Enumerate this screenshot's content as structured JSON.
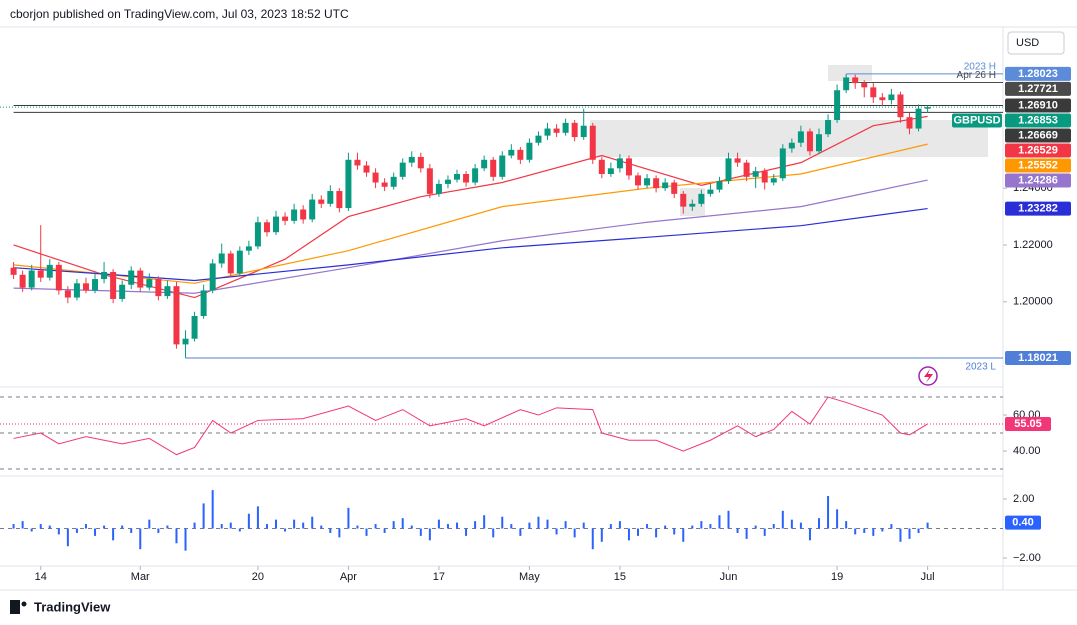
{
  "header": "cborjon published on TradingView.com, Jul 03, 2023 18:52 UTC",
  "brand": "TradingView",
  "currency": "USD",
  "chart_data": [
    {
      "type": "candlestick",
      "symbol": "GBPUSD",
      "up_color": "#089981",
      "down_color": "#f23645",
      "xlim": [
        -1.5,
        109
      ],
      "ylim": [
        1.1707,
        1.2957
      ],
      "xticks": [
        {
          "value": 3,
          "label": "14"
        },
        {
          "value": 14,
          "label": "Mar"
        },
        {
          "value": 27,
          "label": "20"
        },
        {
          "value": 37,
          "label": "Apr"
        },
        {
          "value": 47,
          "label": "17"
        },
        {
          "value": 57,
          "label": "May"
        },
        {
          "value": 67,
          "label": "15"
        },
        {
          "value": 79,
          "label": "Jun"
        },
        {
          "value": 91,
          "label": "19"
        },
        {
          "value": 101,
          "label": "Jul"
        }
      ],
      "yticks": [
        {
          "value": 1.2,
          "label": "1.20000"
        },
        {
          "value": 1.22,
          "label": "1.22000"
        },
        {
          "value": 1.24,
          "label": "1.24000"
        }
      ],
      "open": [
        1.212,
        1.2095,
        1.205,
        1.211,
        1.2085,
        1.213,
        1.204,
        1.2015,
        1.2065,
        1.204,
        1.208,
        1.2105,
        1.201,
        1.206,
        1.211,
        1.205,
        1.208,
        1.202,
        1.2055,
        1.185,
        1.187,
        1.195,
        1.204,
        1.2135,
        1.217,
        1.21,
        1.218,
        1.2195,
        1.228,
        1.2245,
        1.23,
        1.2285,
        1.2325,
        1.229,
        1.236,
        1.2345,
        1.239,
        1.233,
        1.25,
        1.248,
        1.2455,
        1.242,
        1.2405,
        1.244,
        1.249,
        1.251,
        1.247,
        1.238,
        1.2415,
        1.243,
        1.245,
        1.242,
        1.247,
        1.25,
        1.244,
        1.2515,
        1.2535,
        1.25,
        1.256,
        1.2585,
        1.261,
        1.2595,
        1.263,
        1.258,
        1.262,
        1.25,
        1.245,
        1.247,
        1.2505,
        1.2445,
        1.241,
        1.2435,
        1.24,
        1.242,
        1.238,
        1.2335,
        1.2345,
        1.238,
        1.2395,
        1.2425,
        1.2505,
        1.249,
        1.244,
        1.246,
        1.242,
        1.2435,
        1.254,
        1.256,
        1.26,
        1.253,
        1.259,
        1.264,
        1.2745,
        1.279,
        1.277,
        1.2755,
        1.272,
        1.271,
        1.273,
        1.265,
        1.261,
        1.268
      ],
      "high": [
        1.214,
        1.211,
        1.213,
        1.227,
        1.215,
        1.214,
        1.2055,
        1.208,
        1.2085,
        1.21,
        1.214,
        1.2115,
        1.2075,
        1.2125,
        1.212,
        1.21,
        1.209,
        1.2075,
        1.207,
        1.19,
        1.1965,
        1.206,
        1.215,
        1.2205,
        1.218,
        1.2195,
        1.2215,
        1.23,
        1.229,
        1.232,
        1.2315,
        1.2345,
        1.234,
        1.238,
        1.2375,
        1.241,
        1.24,
        1.2525,
        1.2525,
        1.2495,
        1.247,
        1.2435,
        1.2455,
        1.2505,
        1.253,
        1.2525,
        1.2485,
        1.243,
        1.2445,
        1.2465,
        1.246,
        1.2485,
        1.2515,
        1.251,
        1.253,
        1.2555,
        1.2545,
        1.2575,
        1.26,
        1.263,
        1.2625,
        1.2645,
        1.264,
        1.268,
        1.263,
        1.251,
        1.249,
        1.252,
        1.2515,
        1.2455,
        1.245,
        1.2445,
        1.2435,
        1.243,
        1.239,
        1.236,
        1.2395,
        1.2415,
        1.244,
        1.2525,
        1.2525,
        1.25,
        1.2475,
        1.247,
        1.245,
        1.2555,
        1.2575,
        1.262,
        1.261,
        1.261,
        1.266,
        1.2765,
        1.28023,
        1.28,
        1.278,
        1.277,
        1.2735,
        1.275,
        1.274,
        1.2665,
        1.2695,
        1.2691
      ],
      "low": [
        1.208,
        1.2035,
        1.204,
        1.207,
        1.2075,
        1.2025,
        1.1995,
        1.2005,
        1.203,
        1.203,
        1.2065,
        1.1995,
        1.2,
        1.2045,
        1.2035,
        1.204,
        1.2005,
        1.201,
        1.1835,
        1.18021,
        1.186,
        1.194,
        1.203,
        1.212,
        1.2085,
        1.209,
        1.2165,
        1.2185,
        1.223,
        1.2235,
        1.227,
        1.2275,
        1.2275,
        1.228,
        1.233,
        1.2335,
        1.2315,
        1.232,
        1.2465,
        1.244,
        1.24,
        1.239,
        1.2395,
        1.243,
        1.2475,
        1.2455,
        1.2365,
        1.237,
        1.24,
        1.242,
        1.2405,
        1.241,
        1.246,
        1.2425,
        1.243,
        1.2505,
        1.2485,
        1.249,
        1.255,
        1.257,
        1.258,
        1.2585,
        1.2565,
        1.257,
        1.2485,
        1.2435,
        1.244,
        1.2455,
        1.243,
        1.2395,
        1.24,
        1.2385,
        1.239,
        1.2365,
        1.231,
        1.232,
        1.2335,
        1.237,
        1.2385,
        1.2415,
        1.2475,
        1.2425,
        1.24,
        1.2395,
        1.241,
        1.2425,
        1.2525,
        1.2545,
        1.2515,
        1.252,
        1.258,
        1.263,
        1.2735,
        1.275,
        1.272,
        1.27,
        1.269,
        1.2695,
        1.263,
        1.259,
        1.26,
        1.26669
      ],
      "close": [
        1.2095,
        1.205,
        1.211,
        1.2085,
        1.213,
        1.204,
        1.2015,
        1.2065,
        1.204,
        1.208,
        1.2105,
        1.201,
        1.206,
        1.211,
        1.205,
        1.208,
        1.202,
        1.2055,
        1.185,
        1.187,
        1.195,
        1.204,
        1.2135,
        1.217,
        1.21,
        1.218,
        1.2195,
        1.228,
        1.2245,
        1.23,
        1.2285,
        1.2325,
        1.229,
        1.236,
        1.2345,
        1.239,
        1.233,
        1.25,
        1.248,
        1.2455,
        1.242,
        1.2405,
        1.244,
        1.249,
        1.251,
        1.247,
        1.238,
        1.2415,
        1.243,
        1.245,
        1.242,
        1.247,
        1.25,
        1.244,
        1.2515,
        1.2535,
        1.25,
        1.256,
        1.2585,
        1.261,
        1.2595,
        1.263,
        1.258,
        1.262,
        1.25,
        1.245,
        1.247,
        1.2505,
        1.2445,
        1.241,
        1.2435,
        1.24,
        1.242,
        1.238,
        1.2335,
        1.2345,
        1.238,
        1.2395,
        1.2425,
        1.2505,
        1.249,
        1.244,
        1.246,
        1.242,
        1.2435,
        1.254,
        1.256,
        1.26,
        1.253,
        1.259,
        1.264,
        1.2745,
        1.279,
        1.277,
        1.2755,
        1.272,
        1.271,
        1.273,
        1.265,
        1.261,
        1.268,
        1.26853
      ],
      "moving_averages": [
        {
          "color": "#f23645",
          "x": [
            0,
            10,
            20,
            30,
            37,
            45,
            54,
            65,
            76,
            87,
            95,
            101
          ],
          "values": [
            1.22,
            1.2095,
            1.2015,
            1.215,
            1.23,
            1.237,
            1.242,
            1.2515,
            1.241,
            1.249,
            1.262,
            1.26529
          ]
        },
        {
          "color": "#ff9800",
          "x": [
            0,
            20,
            37,
            54,
            70,
            87,
            101
          ],
          "values": [
            1.213,
            1.2065,
            1.218,
            1.2335,
            1.24,
            1.245,
            1.25552
          ]
        },
        {
          "color": "#9575cd",
          "x": [
            0,
            20,
            37,
            54,
            70,
            87,
            101
          ],
          "values": [
            1.2048,
            1.203,
            1.212,
            1.2215,
            1.228,
            1.2335,
            1.24286
          ]
        },
        {
          "color": "#2a2ed6",
          "x": [
            0,
            20,
            37,
            54,
            70,
            87,
            101
          ],
          "values": [
            1.212,
            1.2075,
            1.213,
            1.219,
            1.2227,
            1.2268,
            1.23282
          ]
        }
      ],
      "levels": [
        {
          "value": 1.28023,
          "label": "2023 H",
          "color": "#5b8bd9"
        },
        {
          "value": 1.27721,
          "label": "Apr 26 H",
          "color": "#4a4a4a"
        },
        {
          "value": {
            "value": 1.2691,
            "label": "1.26910"
          },
          "color": "#3a3a3a"
        },
        {
          "value": 1.26669,
          "color": "#3a3a3a"
        },
        {
          "value": 1.18021,
          "label": "2023 L",
          "color": "#4f7fd6"
        }
      ]
    },
    {
      "type": "line",
      "color": "#f23677",
      "xlim": [
        -1.5,
        109
      ],
      "ylim": [
        26.7,
        73.9
      ],
      "yticks": [
        {
          "value": 60,
          "label": "60.00"
        },
        {
          "value": 40,
          "label": "40.00"
        }
      ],
      "bands": [
        70,
        50,
        30
      ],
      "x": [
        0,
        3,
        5,
        8,
        12,
        15,
        18,
        20,
        22,
        24,
        27,
        32,
        37,
        40,
        43,
        46,
        50,
        52,
        56,
        58,
        60,
        64,
        65,
        68,
        71,
        74,
        77,
        80,
        82,
        84,
        86,
        88,
        90,
        92,
        96,
        98,
        99,
        101
      ],
      "values": [
        47,
        50,
        44,
        48,
        44,
        47,
        38,
        42,
        57,
        50,
        57,
        58,
        65,
        57,
        63,
        54,
        58,
        54,
        63,
        60,
        64,
        63,
        50,
        46,
        46,
        40,
        46,
        54,
        48,
        52,
        62,
        55,
        70,
        67,
        60,
        50,
        49,
        55.05
      ]
    },
    {
      "type": "bar",
      "color": "#2962ff",
      "xlim": [
        -1.5,
        109
      ],
      "ylim": [
        -2.47,
        3.42
      ],
      "yticks": [
        {
          "value": 2,
          "label": "2.00"
        },
        {
          "value": -2,
          "label": "−2.00"
        }
      ],
      "values": [
        0.3,
        0.5,
        -0.2,
        0.3,
        0.2,
        -0.4,
        -1.2,
        -0.3,
        0.3,
        -0.5,
        0.2,
        -0.8,
        0.2,
        -0.3,
        -1.4,
        0.6,
        -0.3,
        0.2,
        -1.0,
        -1.5,
        0.4,
        1.7,
        2.6,
        0.3,
        0.4,
        -0.2,
        1.0,
        1.5,
        0.3,
        0.6,
        -0.2,
        0.6,
        0.4,
        0.8,
        0.2,
        -0.3,
        -0.6,
        1.4,
        0.2,
        -0.5,
        0.3,
        -0.3,
        0.5,
        0.7,
        0.2,
        -0.5,
        -0.8,
        0.6,
        0.3,
        0.4,
        -0.5,
        0.5,
        0.9,
        -0.6,
        0.8,
        0.3,
        -0.5,
        0.4,
        0.8,
        0.6,
        -0.4,
        0.5,
        -0.6,
        0.4,
        -1.4,
        -0.9,
        0.3,
        0.5,
        -0.8,
        -0.5,
        0.3,
        -0.6,
        0.2,
        -0.4,
        -0.9,
        0.2,
        0.5,
        0.3,
        0.9,
        1.2,
        -0.3,
        -0.7,
        0.2,
        -0.5,
        0.3,
        1.2,
        0.6,
        0.4,
        -0.8,
        0.7,
        2.2,
        1.3,
        0.5,
        -0.4,
        -0.3,
        -0.5,
        -0.2,
        0.3,
        -0.9,
        -0.7,
        -0.3,
        0.4
      ],
      "last_value_label": "0.40"
    }
  ]
}
